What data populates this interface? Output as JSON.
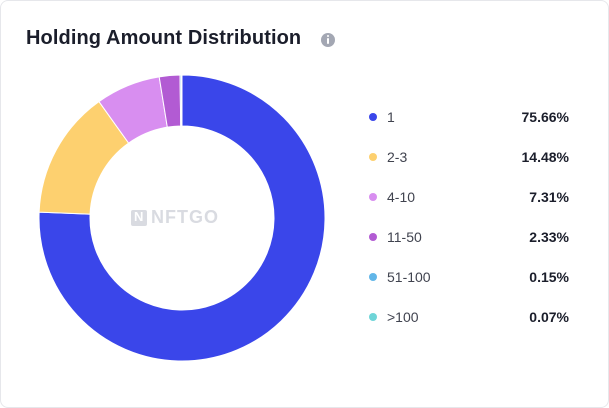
{
  "card": {
    "title": "Holding Amount Distribution",
    "info_icon": "info-icon",
    "watermark": "NFTGO"
  },
  "chart_data": {
    "type": "pie",
    "donut": true,
    "categories": [
      "1",
      "2-3",
      "4-10",
      "11-50",
      "51-100",
      ">100"
    ],
    "values": [
      75.66,
      14.48,
      7.31,
      2.33,
      0.15,
      0.07
    ],
    "value_labels": [
      "75.66%",
      "14.48%",
      "7.31%",
      "2.33%",
      "0.15%",
      "0.07%"
    ],
    "colors": [
      "#3a46ea",
      "#fdd06f",
      "#d88ef0",
      "#b25bd3",
      "#62b6e8",
      "#6fd5d8"
    ],
    "title": "Holding Amount Distribution",
    "legend_position": "right"
  }
}
